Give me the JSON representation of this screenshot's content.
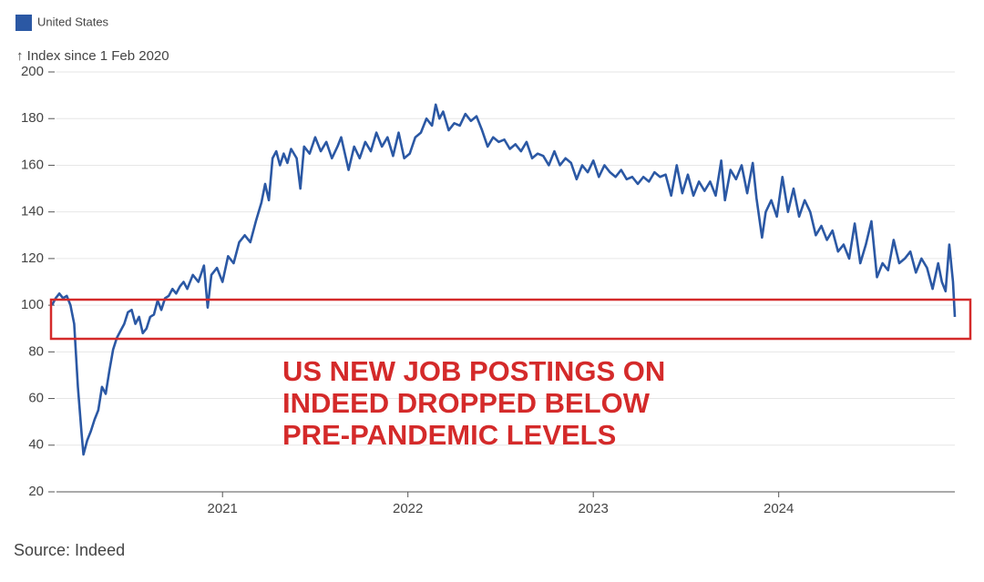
{
  "chart_data": {
    "type": "line",
    "y_label": "↑ Index since 1 Feb 2020",
    "source": "Source: Indeed",
    "annotation": [
      "US NEW JOB POSTINGS ON",
      "INDEED DROPPED BELOW",
      "PRE-PANDEMIC LEVELS"
    ],
    "x": [
      2020.08,
      2020.1,
      2020.12,
      2020.14,
      2020.16,
      2020.18,
      2020.2,
      2020.22,
      2020.24,
      2020.25,
      2020.27,
      2020.29,
      2020.31,
      2020.33,
      2020.35,
      2020.37,
      2020.39,
      2020.41,
      2020.43,
      2020.45,
      2020.47,
      2020.49,
      2020.51,
      2020.53,
      2020.55,
      2020.57,
      2020.59,
      2020.61,
      2020.63,
      2020.65,
      2020.67,
      2020.69,
      2020.71,
      2020.73,
      2020.75,
      2020.77,
      2020.79,
      2020.81,
      2020.84,
      2020.87,
      2020.9,
      2020.92,
      2020.94,
      2020.97,
      2021.0,
      2021.03,
      2021.06,
      2021.09,
      2021.12,
      2021.15,
      2021.18,
      2021.21,
      2021.23,
      2021.25,
      2021.27,
      2021.29,
      2021.31,
      2021.33,
      2021.35,
      2021.37,
      2021.4,
      2021.42,
      2021.44,
      2021.47,
      2021.5,
      2021.53,
      2021.56,
      2021.59,
      2021.62,
      2021.64,
      2021.66,
      2021.68,
      2021.71,
      2021.74,
      2021.77,
      2021.8,
      2021.83,
      2021.86,
      2021.89,
      2021.92,
      2021.95,
      2021.98,
      2022.01,
      2022.04,
      2022.07,
      2022.1,
      2022.13,
      2022.15,
      2022.17,
      2022.19,
      2022.22,
      2022.25,
      2022.28,
      2022.31,
      2022.34,
      2022.37,
      2022.4,
      2022.43,
      2022.46,
      2022.49,
      2022.52,
      2022.55,
      2022.58,
      2022.61,
      2022.64,
      2022.67,
      2022.7,
      2022.73,
      2022.76,
      2022.79,
      2022.82,
      2022.85,
      2022.88,
      2022.91,
      2022.94,
      2022.97,
      2023.0,
      2023.03,
      2023.06,
      2023.09,
      2023.12,
      2023.15,
      2023.18,
      2023.21,
      2023.24,
      2023.27,
      2023.3,
      2023.33,
      2023.36,
      2023.39,
      2023.42,
      2023.45,
      2023.48,
      2023.51,
      2023.54,
      2023.57,
      2023.6,
      2023.63,
      2023.66,
      2023.69,
      2023.71,
      2023.74,
      2023.77,
      2023.8,
      2023.83,
      2023.86,
      2023.88,
      2023.91,
      2023.93,
      2023.96,
      2023.99,
      2024.02,
      2024.05,
      2024.08,
      2024.11,
      2024.14,
      2024.17,
      2024.2,
      2024.23,
      2024.26,
      2024.29,
      2024.32,
      2024.35,
      2024.38,
      2024.41,
      2024.44,
      2024.47,
      2024.5,
      2024.53,
      2024.56,
      2024.59,
      2024.62,
      2024.65,
      2024.68,
      2024.71,
      2024.74,
      2024.77,
      2024.8,
      2024.83,
      2024.86,
      2024.88,
      2024.9,
      2024.92,
      2024.94,
      2024.95
    ],
    "series": [
      {
        "name": "United States",
        "color": "#2b58a4",
        "values": [
          100,
          103,
          105,
          103,
          104,
          100,
          92,
          65,
          45,
          36,
          42,
          46,
          51,
          55,
          65,
          62,
          72,
          81,
          86,
          89,
          92,
          97,
          98,
          92,
          95,
          88,
          90,
          95,
          96,
          102,
          98,
          103,
          104,
          107,
          105,
          108,
          110,
          107,
          113,
          110,
          117,
          99,
          113,
          116,
          110,
          121,
          118,
          127,
          130,
          127,
          136,
          144,
          152,
          145,
          163,
          166,
          160,
          165,
          161,
          167,
          163,
          150,
          168,
          165,
          172,
          166,
          170,
          163,
          168,
          172,
          165,
          158,
          168,
          163,
          170,
          166,
          174,
          168,
          172,
          164,
          174,
          163,
          165,
          172,
          174,
          180,
          177,
          186,
          180,
          183,
          175,
          178,
          177,
          182,
          179,
          181,
          175,
          168,
          172,
          170,
          171,
          167,
          169,
          166,
          170,
          163,
          165,
          164,
          160,
          166,
          160,
          163,
          161,
          154,
          160,
          157,
          162,
          155,
          160,
          157,
          155,
          158,
          154,
          155,
          152,
          155,
          153,
          157,
          155,
          156,
          147,
          160,
          148,
          156,
          147,
          153,
          149,
          153,
          147,
          162,
          145,
          158,
          154,
          160,
          148,
          161,
          146,
          129,
          140,
          145,
          138,
          155,
          140,
          150,
          138,
          145,
          140,
          130,
          134,
          128,
          132,
          123,
          126,
          120,
          135,
          118,
          126,
          136,
          112,
          118,
          115,
          128,
          118,
          120,
          123,
          114,
          120,
          116,
          107,
          118,
          110,
          106,
          126,
          110,
          95
        ]
      }
    ],
    "xlim": [
      2020.08,
      2024.95
    ],
    "xticks": [
      2021,
      2022,
      2023,
      2024
    ],
    "ylim": [
      20,
      200
    ],
    "yticks": [
      20,
      40,
      60,
      80,
      100,
      120,
      140,
      160,
      180,
      200
    ],
    "grid": true
  }
}
